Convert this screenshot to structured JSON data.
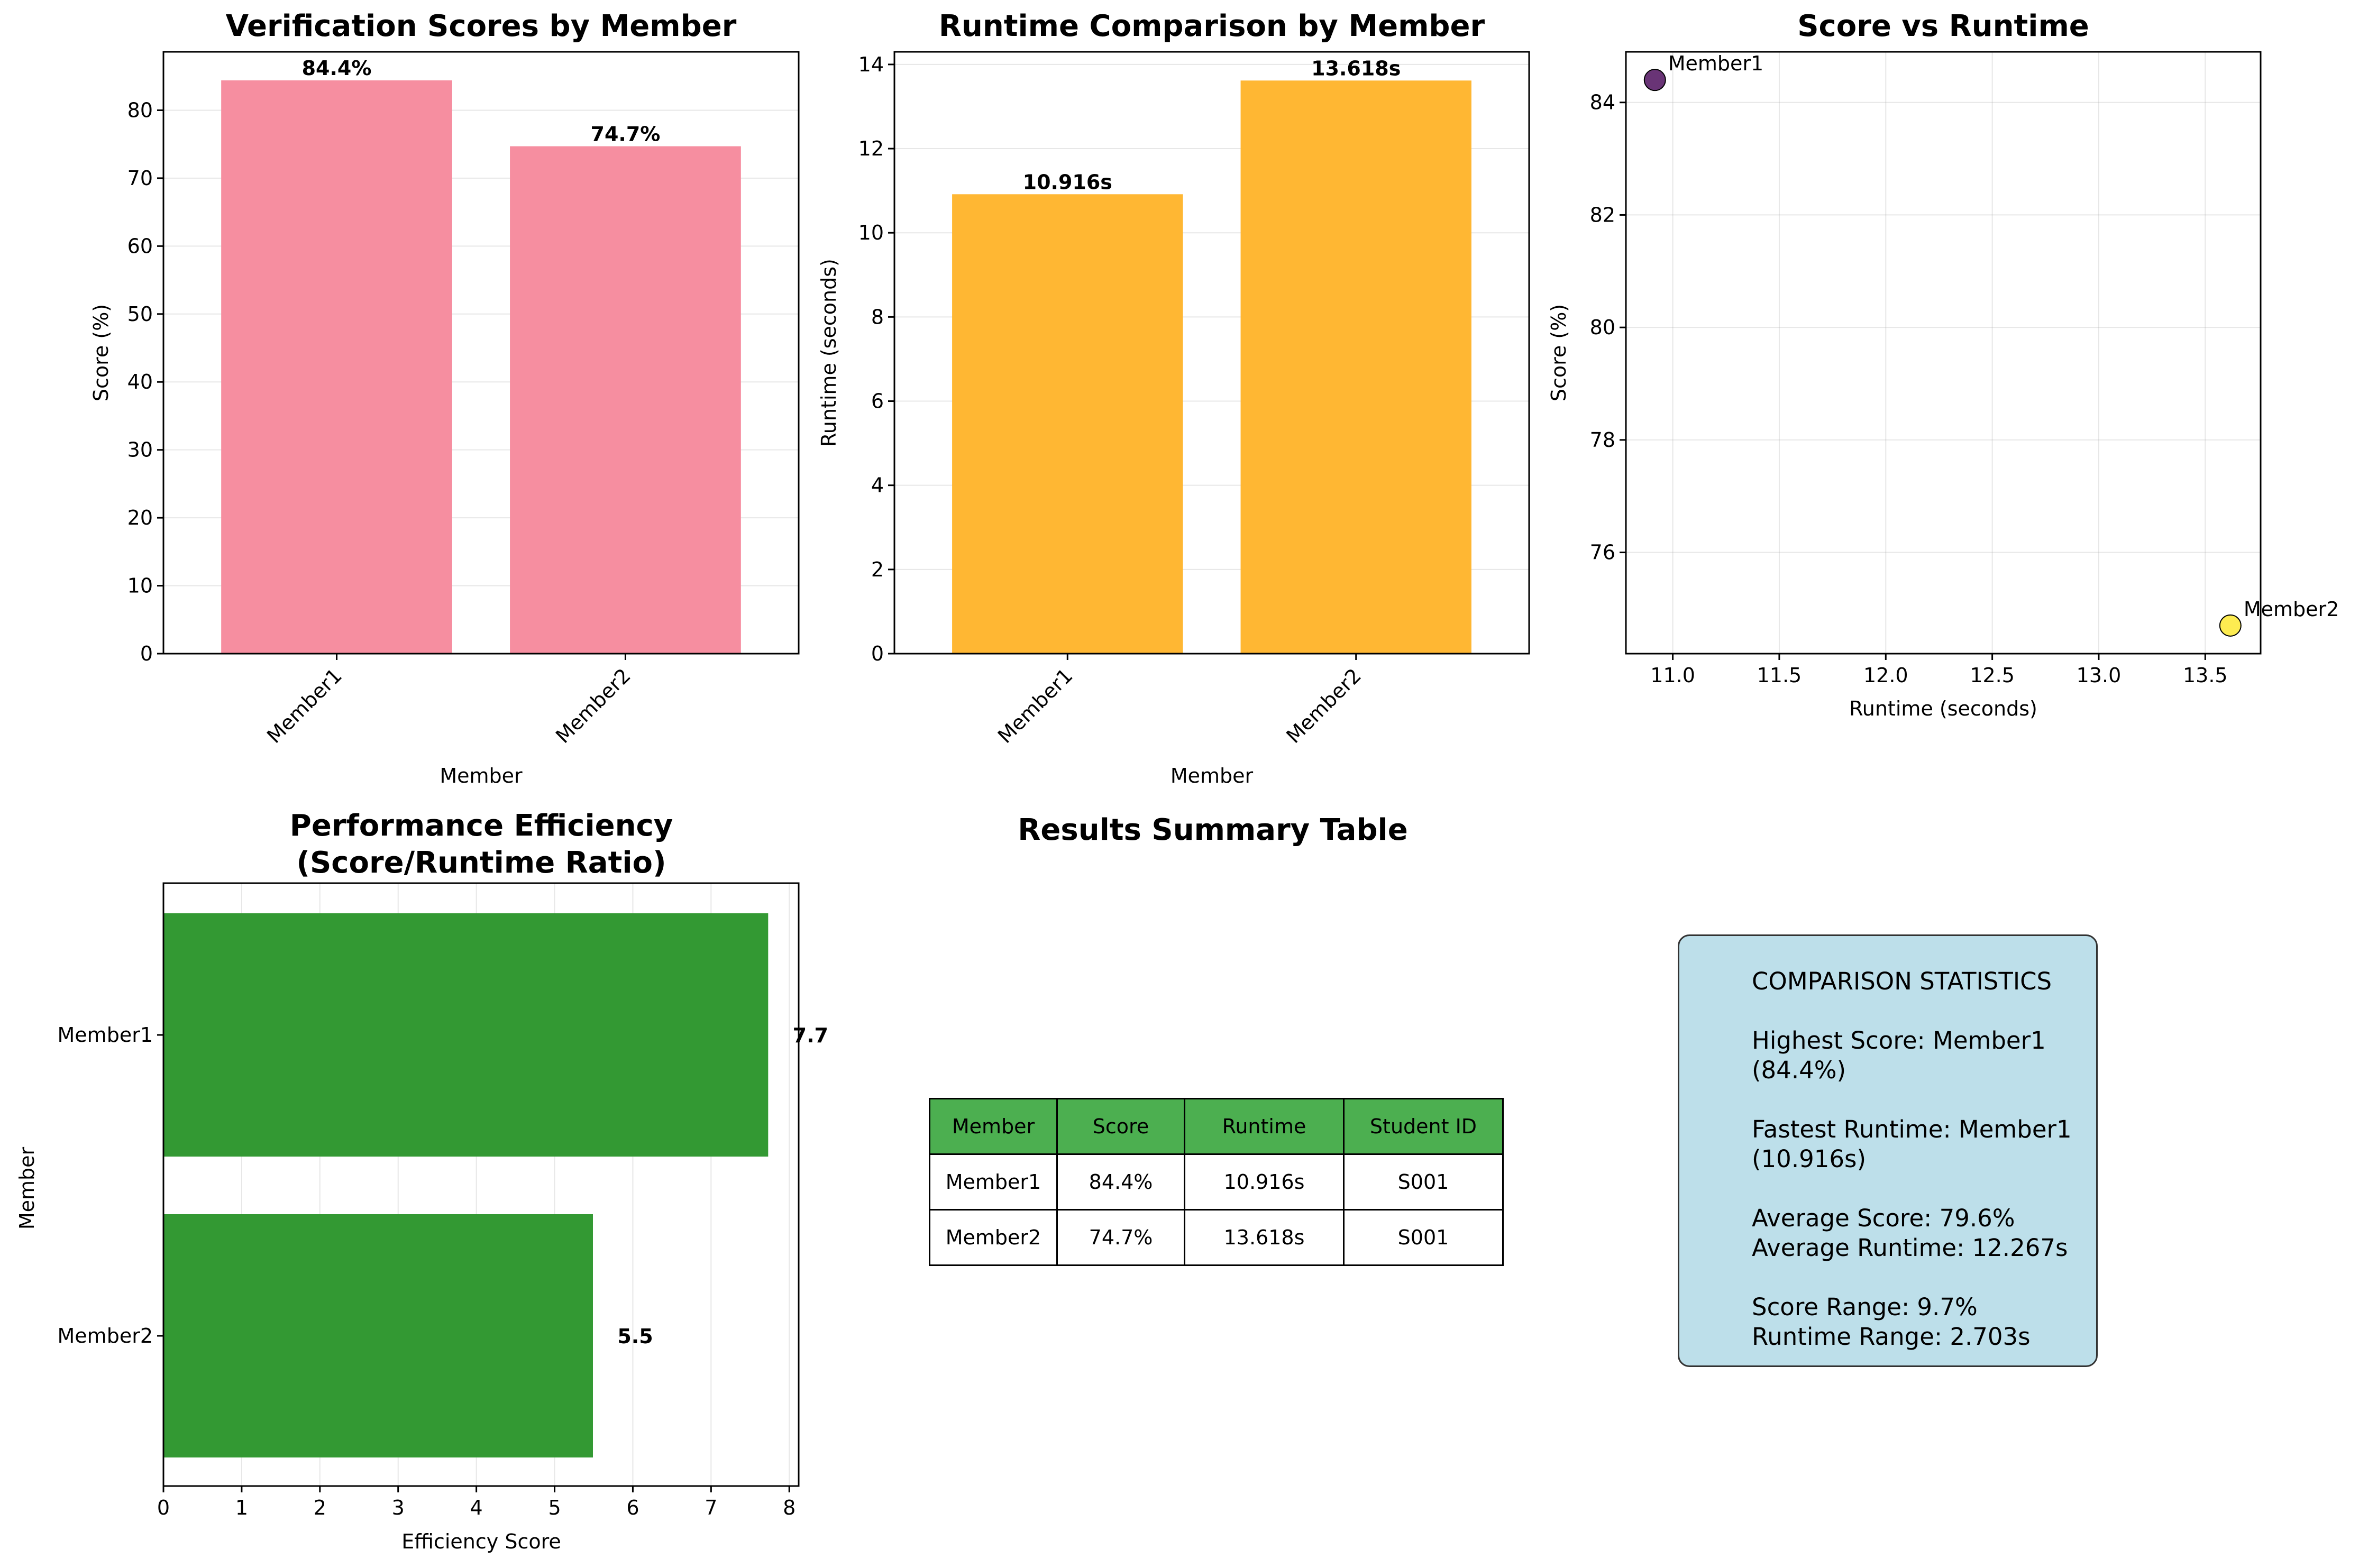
{
  "colors": {
    "score_bar": "#f68ea0",
    "runtime_bar": "#ffb733",
    "efficiency_bar": "#339933",
    "scatter_low": "#440154",
    "scatter_high": "#fde725",
    "table_header": "#4caf50",
    "stats_box": "#add8e6"
  },
  "chart_data": [
    {
      "type": "bar",
      "title": "Verification Scores by Member",
      "xlabel": "Member",
      "ylabel": "Score (%)",
      "categories": [
        "Member1",
        "Member2"
      ],
      "values": [
        84.4,
        74.7
      ],
      "value_labels": [
        "84.4%",
        "74.7%"
      ],
      "ylim": [
        0,
        88.6
      ],
      "yticks": [
        0,
        10,
        20,
        30,
        40,
        50,
        60,
        70,
        80
      ],
      "grid": true
    },
    {
      "type": "bar",
      "title": "Runtime Comparison by Member",
      "xlabel": "Member",
      "ylabel": "Runtime (seconds)",
      "categories": [
        "Member1",
        "Member2"
      ],
      "values": [
        10.916,
        13.618
      ],
      "value_labels": [
        "10.916s",
        "13.618s"
      ],
      "ylim": [
        0,
        14.3
      ],
      "yticks": [
        0,
        2,
        4,
        6,
        8,
        10,
        12,
        14
      ],
      "grid": true
    },
    {
      "type": "scatter",
      "title": "Score vs Runtime",
      "xlabel": "Runtime (seconds)",
      "ylabel": "Score (%)",
      "points": [
        {
          "label": "Member1",
          "x": 10.916,
          "y": 84.4
        },
        {
          "label": "Member2",
          "x": 13.618,
          "y": 74.7
        }
      ],
      "xlim": [
        10.78,
        13.76
      ],
      "ylim": [
        74.2,
        84.9
      ],
      "xticks": [
        11.0,
        11.5,
        12.0,
        12.5,
        13.0,
        13.5
      ],
      "xtick_labels": [
        "11.0",
        "11.5",
        "12.0",
        "12.5",
        "13.0",
        "13.5"
      ],
      "yticks": [
        76,
        78,
        80,
        82,
        84
      ],
      "grid": true
    },
    {
      "type": "bar",
      "orientation": "horizontal",
      "title": "Performance Efficiency\n(Score/Runtime Ratio)",
      "title_lines": [
        "Performance Efficiency",
        "(Score/Runtime Ratio)"
      ],
      "xlabel": "Efficiency Score",
      "ylabel": "Member",
      "categories": [
        "Member1",
        "Member2"
      ],
      "values": [
        7.73,
        5.49
      ],
      "value_labels": [
        "7.7",
        "5.5"
      ],
      "xlim": [
        0,
        8.12
      ],
      "xticks": [
        0,
        1,
        2,
        3,
        4,
        5,
        6,
        7,
        8
      ],
      "grid": true
    },
    {
      "type": "table",
      "title": "Results Summary Table",
      "columns": [
        "Member",
        "Score",
        "Runtime",
        "Student ID"
      ],
      "rows": [
        [
          "Member1",
          "84.4%",
          "10.916s",
          "S001"
        ],
        [
          "Member2",
          "74.7%",
          "13.618s",
          "S001"
        ]
      ]
    }
  ],
  "stats_text": "COMPARISON STATISTICS\n\nHighest Score: Member1\n(84.4%)\n\nFastest Runtime: Member1\n(10.916s)\n\nAverage Score: 79.6%\nAverage Runtime: 12.267s\n\nScore Range: 9.7%\nRuntime Range: 2.703s"
}
